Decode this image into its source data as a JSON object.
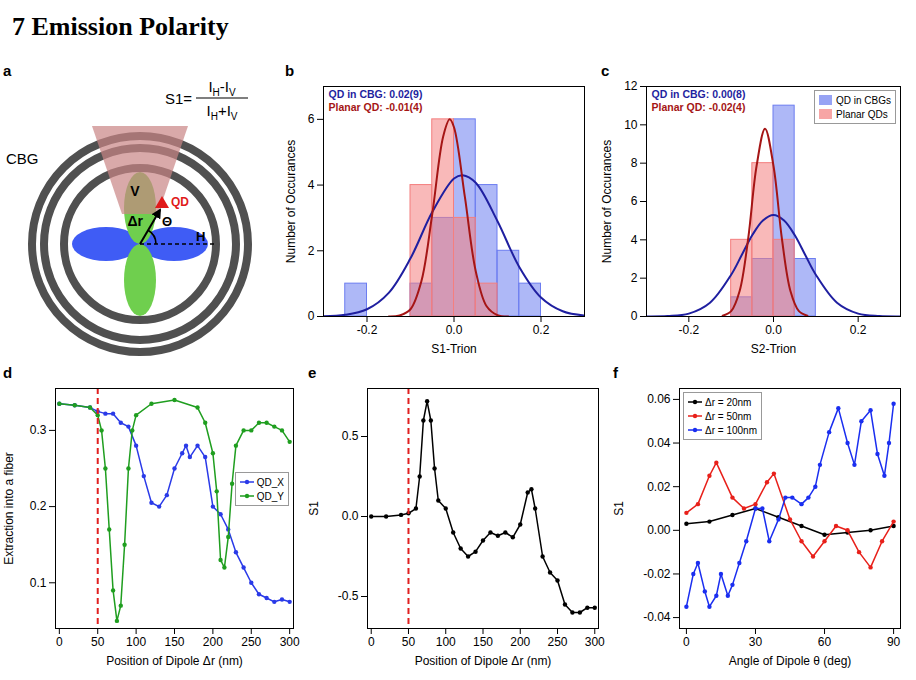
{
  "heading": "7 Emission Polarity",
  "diagram": {
    "panel": "a",
    "formula": {
      "lhs": "S1=",
      "numerator": [
        {
          "t": "I",
          "sub": "H"
        },
        {
          "t": "-"
        },
        {
          "t": "I",
          "sub": "V"
        }
      ],
      "denominator": [
        {
          "t": "I",
          "sub": "H"
        },
        {
          "t": "+"
        },
        {
          "t": "I",
          "sub": "V"
        }
      ]
    },
    "labels": {
      "cbg": "CBG",
      "v": "V",
      "qd": "QD",
      "dr": "Δr",
      "theta": "Θ",
      "h": "H"
    }
  },
  "chart_data": [
    {
      "panel": "b",
      "type": "histogram",
      "xlabel": "S1-Trion",
      "ylabel": "Number of Occurances",
      "xlim": [
        -0.3,
        0.3
      ],
      "xticks": [
        -0.2,
        {
          "value": 0,
          "label": "0.0"
        },
        0.2
      ],
      "ylim": [
        0,
        7
      ],
      "yticks": [
        0,
        2,
        4,
        6
      ],
      "bins": [
        -0.25,
        -0.2,
        -0.15,
        -0.1,
        -0.05,
        0,
        0.05,
        0.1,
        0.15,
        0.2
      ],
      "series": [
        {
          "type": "bar",
          "color": "#6c7df0",
          "values": [
            1,
            0,
            0,
            1,
            3,
            6,
            4,
            2,
            1
          ]
        },
        {
          "type": "bar",
          "color": "#f47f7f",
          "values": [
            0,
            0,
            0,
            4,
            6,
            3,
            1,
            0,
            0
          ]
        },
        {
          "type": "line",
          "color": "#1f1fa0",
          "line_style": "solid",
          "x": [
            -0.3,
            -0.25,
            -0.2,
            -0.15,
            -0.1,
            -0.05,
            0,
            0.02,
            0.05,
            0.1,
            0.15,
            0.2,
            0.25,
            0.3
          ],
          "values": [
            0.01,
            0.05,
            0.22,
            0.72,
            1.77,
            3.18,
            4.2,
            4.3,
            4.07,
            2.9,
            1.51,
            0.58,
            0.16,
            0.03
          ]
        },
        {
          "type": "line",
          "color": "#a51515",
          "line_style": "solid",
          "x": [
            -0.15,
            -0.125,
            -0.1,
            -0.075,
            -0.05,
            -0.025,
            -0.01,
            0,
            0.025,
            0.05,
            0.075,
            0.1,
            0.125
          ],
          "values": [
            0,
            0.03,
            0.22,
            1.07,
            3.12,
            5.47,
            6,
            5.76,
            3.64,
            1.38,
            0.31,
            0.04,
            0
          ]
        }
      ],
      "annotations": [
        {
          "text": "QD in CBG: 0.02(9)",
          "color": "#1f1fa0"
        },
        {
          "text": "Planar QD: -0.01(4)",
          "color": "#a51515"
        }
      ]
    },
    {
      "panel": "c",
      "type": "histogram",
      "xlabel": "S2-Trion",
      "ylabel": "Number of Occurances",
      "xlim": [
        -0.3,
        0.3
      ],
      "xticks": [
        -0.2,
        {
          "value": 0,
          "label": "0.0"
        },
        0.2
      ],
      "ylim": [
        0,
        12
      ],
      "yticks": [
        0,
        2,
        4,
        6,
        8,
        10,
        12
      ],
      "bins": [
        -0.1,
        -0.05,
        0,
        0.05,
        0.1
      ],
      "legend": "upper right",
      "series": [
        {
          "type": "bar",
          "name": "QD in CBGs",
          "color": "#6c7df0",
          "values": [
            1,
            3,
            11,
            3
          ]
        },
        {
          "type": "bar",
          "name": "Planar QDs",
          "color": "#f47f7f",
          "values": [
            4,
            8,
            4,
            0
          ]
        },
        {
          "type": "line",
          "color": "#1f1fa0",
          "line_style": "solid",
          "x": [
            -0.3,
            -0.25,
            -0.2,
            -0.15,
            -0.1,
            -0.075,
            -0.05,
            -0.025,
            0,
            0.025,
            0.05,
            0.075,
            0.1,
            0.15,
            0.2,
            0.25,
            0.3
          ],
          "values": [
            0,
            0.02,
            0.15,
            0.72,
            2.18,
            3.21,
            4.25,
            5.01,
            5.3,
            5.01,
            4.25,
            3.21,
            2.18,
            0.72,
            0.15,
            0.02,
            0
          ]
        },
        {
          "type": "line",
          "color": "#a51515",
          "line_style": "solid",
          "x": [
            -0.12,
            -0.1,
            -0.08,
            -0.06,
            -0.04,
            -0.02,
            0,
            0.02,
            0.04,
            0.06,
            0.08
          ],
          "values": [
            0.04,
            0.28,
            1.33,
            4.03,
            7.85,
            9.8,
            7.85,
            4.03,
            1.33,
            0.28,
            0.04
          ]
        }
      ],
      "annotations": [
        {
          "text": "QD in CBG: 0.00(8)",
          "color": "#1f1fa0"
        },
        {
          "text": "Planar QD: -0.02(4)",
          "color": "#a51515"
        }
      ]
    },
    {
      "panel": "d",
      "type": "line",
      "xlabel": "Position of Dipole Δr (nm)",
      "ylabel": "Extraction into a fiber",
      "xlim": [
        -5,
        305
      ],
      "xticks": [
        0,
        50,
        100,
        150,
        200,
        250,
        300
      ],
      "ylim": [
        0.04,
        0.355
      ],
      "yticks": [
        0.1,
        0.2,
        0.3
      ],
      "legend": "center right",
      "reference_line": {
        "x": 50,
        "color": "#e02020",
        "line_style": "dashed"
      },
      "series": [
        {
          "name": "QD_X",
          "color": "#2a3ae8",
          "marker": "circle",
          "line_style": "solid",
          "x": [
            0,
            20,
            40,
            50,
            60,
            70,
            80,
            90,
            100,
            110,
            120,
            130,
            140,
            150,
            160,
            165,
            170,
            180,
            190,
            200,
            210,
            220,
            230,
            240,
            250,
            260,
            270,
            280,
            290,
            300
          ],
          "values": [
            0.335,
            0.333,
            0.33,
            0.325,
            0.322,
            0.322,
            0.31,
            0.305,
            0.28,
            0.24,
            0.205,
            0.2,
            0.215,
            0.25,
            0.27,
            0.28,
            0.265,
            0.28,
            0.265,
            0.2,
            0.19,
            0.17,
            0.14,
            0.12,
            0.1,
            0.085,
            0.08,
            0.075,
            0.078,
            0.075
          ]
        },
        {
          "name": "QD_Y",
          "color": "#1f9e1f",
          "marker": "circle",
          "line_style": "solid",
          "x": [
            0,
            20,
            40,
            50,
            55,
            60,
            65,
            70,
            75,
            80,
            85,
            90,
            95,
            100,
            120,
            150,
            180,
            190,
            200,
            205,
            210,
            215,
            220,
            225,
            230,
            240,
            250,
            260,
            270,
            280,
            290,
            300
          ],
          "values": [
            0.335,
            0.333,
            0.33,
            0.32,
            0.3,
            0.25,
            0.17,
            0.09,
            0.05,
            0.07,
            0.15,
            0.25,
            0.3,
            0.32,
            0.335,
            0.34,
            0.33,
            0.31,
            0.27,
            0.22,
            0.13,
            0.12,
            0.16,
            0.23,
            0.28,
            0.3,
            0.3,
            0.31,
            0.31,
            0.305,
            0.3,
            0.285
          ]
        }
      ]
    },
    {
      "panel": "e",
      "type": "line",
      "xlabel": "Position of Dipole Δr (nm)",
      "ylabel": "S1",
      "xlim": [
        -5,
        305
      ],
      "xticks": [
        0,
        50,
        100,
        150,
        200,
        250,
        300
      ],
      "ylim": [
        -0.7,
        0.8
      ],
      "yticks": [
        -0.5,
        {
          "value": 0,
          "label": "0.0"
        },
        0.5
      ],
      "reference_line": {
        "x": 50,
        "color": "#e02020",
        "line_style": "dashed"
      },
      "series": [
        {
          "color": "#000000",
          "marker": "circle",
          "line_style": "solid",
          "x": [
            0,
            20,
            40,
            50,
            60,
            65,
            70,
            75,
            80,
            85,
            90,
            100,
            110,
            120,
            130,
            140,
            150,
            160,
            170,
            180,
            190,
            200,
            210,
            215,
            220,
            230,
            240,
            250,
            260,
            270,
            280,
            290,
            300
          ],
          "values": [
            0,
            0,
            0.01,
            0.02,
            0.05,
            0.25,
            0.6,
            0.72,
            0.6,
            0.3,
            0.1,
            0.05,
            -0.1,
            -0.2,
            -0.25,
            -0.22,
            -0.15,
            -0.1,
            -0.12,
            -0.1,
            -0.13,
            -0.05,
            0.15,
            0.17,
            0.05,
            -0.25,
            -0.35,
            -0.4,
            -0.55,
            -0.6,
            -0.6,
            -0.57,
            -0.57
          ]
        }
      ]
    },
    {
      "panel": "f",
      "type": "line",
      "xlabel": "Angle of Dipole θ (deg)",
      "ylabel": "S1",
      "xlim": [
        -3,
        93
      ],
      "xticks": [
        0,
        30,
        60,
        90
      ],
      "ylim": [
        -0.045,
        0.065
      ],
      "yticks": [
        -0.04,
        -0.02,
        {
          "value": 0,
          "label": "0.00"
        },
        0.02,
        0.04,
        0.06
      ],
      "legend": "upper left",
      "series": [
        {
          "name": "Δr = 20nm",
          "color": "#000000",
          "marker": "circle",
          "line_style": "solid",
          "x": [
            0,
            10,
            20,
            30,
            40,
            50,
            60,
            70,
            80,
            90
          ],
          "values": [
            0.003,
            0.004,
            0.007,
            0.01,
            0.006,
            0.002,
            -0.002,
            -0.001,
            0,
            0.002
          ]
        },
        {
          "name": "Δr = 50nm",
          "color": "#e8201a",
          "marker": "circle",
          "line_style": "solid",
          "x": [
            0,
            5,
            10,
            13,
            20,
            25,
            30,
            35,
            38,
            45,
            50,
            55,
            60,
            65,
            70,
            75,
            80,
            85,
            90
          ],
          "values": [
            0.008,
            0.012,
            0.025,
            0.031,
            0.015,
            0.01,
            0.012,
            0.022,
            0.026,
            0.005,
            -0.005,
            -0.012,
            -0.005,
            0.002,
            0,
            -0.01,
            -0.017,
            -0.005,
            0.004
          ]
        },
        {
          "name": "Δr = 100nm",
          "color": "#1a2ef0",
          "marker": "circle",
          "line_style": "solid",
          "x": [
            0,
            3,
            5,
            8,
            10,
            13,
            15,
            18,
            20,
            23,
            26,
            30,
            33,
            36,
            40,
            43,
            46,
            50,
            53,
            56,
            58,
            62,
            66,
            70,
            73,
            76,
            80,
            83,
            86,
            88,
            90
          ],
          "values": [
            -0.035,
            -0.02,
            -0.015,
            -0.028,
            -0.035,
            -0.03,
            -0.02,
            -0.03,
            -0.025,
            -0.015,
            -0.005,
            0.01,
            0.01,
            -0.005,
            0.005,
            0.015,
            0.015,
            0.012,
            0.015,
            0.02,
            0.03,
            0.045,
            0.056,
            0.04,
            0.03,
            0.05,
            0.055,
            0.035,
            0.025,
            0.04,
            0.058
          ]
        }
      ]
    }
  ]
}
